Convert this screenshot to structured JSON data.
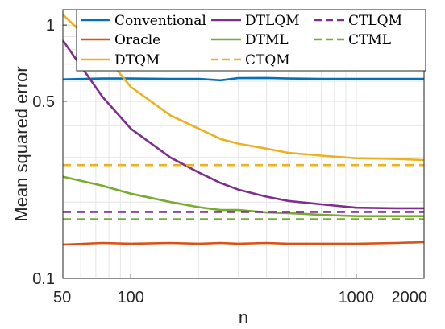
{
  "chart_data": {
    "type": "line",
    "title": "",
    "xlabel": "n",
    "ylabel": "Mean squared error",
    "xscale": "log",
    "yscale": "log",
    "xlim": [
      50,
      2000
    ],
    "ylim": [
      0.1,
      1.15
    ],
    "xticks": [
      50,
      100,
      1000,
      2000
    ],
    "xtick_labels": [
      "50",
      "100",
      "1000",
      "2000"
    ],
    "yticks": [
      0.1,
      0.5,
      1
    ],
    "ytick_labels": [
      "0.1",
      "0.5",
      "1"
    ],
    "grid": true,
    "legend_position": "top",
    "x": [
      50,
      75,
      100,
      150,
      200,
      250,
      300,
      400,
      500,
      700,
      1000,
      1500,
      2000
    ],
    "series": [
      {
        "name": "Conventional",
        "color": "#0072BD",
        "dash": "solid",
        "values": [
          0.61,
          0.615,
          0.615,
          0.613,
          0.613,
          0.605,
          0.617,
          0.618,
          0.615,
          0.613,
          0.613,
          0.613,
          0.613
        ]
      },
      {
        "name": "Oracle",
        "color": "#D95319",
        "dash": "solid",
        "values": [
          0.136,
          0.138,
          0.137,
          0.138,
          0.137,
          0.138,
          0.137,
          0.138,
          0.137,
          0.137,
          0.137,
          0.138,
          0.139
        ]
      },
      {
        "name": "DTQM",
        "color": "#EDB120",
        "dash": "solid",
        "values": [
          1.1,
          0.78,
          0.57,
          0.44,
          0.39,
          0.355,
          0.34,
          0.325,
          0.313,
          0.305,
          0.298,
          0.296,
          0.293
        ]
      },
      {
        "name": "DTLQM",
        "color": "#7E2F8E",
        "dash": "solid",
        "values": [
          0.87,
          0.52,
          0.39,
          0.3,
          0.262,
          0.238,
          0.224,
          0.21,
          0.202,
          0.196,
          0.19,
          0.189,
          0.189
        ]
      },
      {
        "name": "DTML",
        "color": "#77AC30",
        "dash": "solid",
        "values": [
          0.252,
          0.232,
          0.216,
          0.2,
          0.191,
          0.186,
          0.186,
          0.182,
          0.181,
          0.178,
          0.176,
          0.176,
          0.176
        ]
      },
      {
        "name": "CTQM",
        "color": "#EDB120",
        "dash": "dashed",
        "values": [
          0.28,
          0.28,
          0.28,
          0.28,
          0.28,
          0.28,
          0.28,
          0.28,
          0.28,
          0.28,
          0.28,
          0.28,
          0.28
        ]
      },
      {
        "name": "CTLQM",
        "color": "#7E2F8E",
        "dash": "dashed",
        "values": [
          0.183,
          0.183,
          0.183,
          0.183,
          0.183,
          0.183,
          0.183,
          0.183,
          0.183,
          0.183,
          0.183,
          0.183,
          0.183
        ]
      },
      {
        "name": "CTML",
        "color": "#77AC30",
        "dash": "dashed",
        "values": [
          0.171,
          0.171,
          0.171,
          0.171,
          0.171,
          0.171,
          0.171,
          0.171,
          0.171,
          0.171,
          0.171,
          0.171,
          0.171
        ]
      }
    ]
  }
}
